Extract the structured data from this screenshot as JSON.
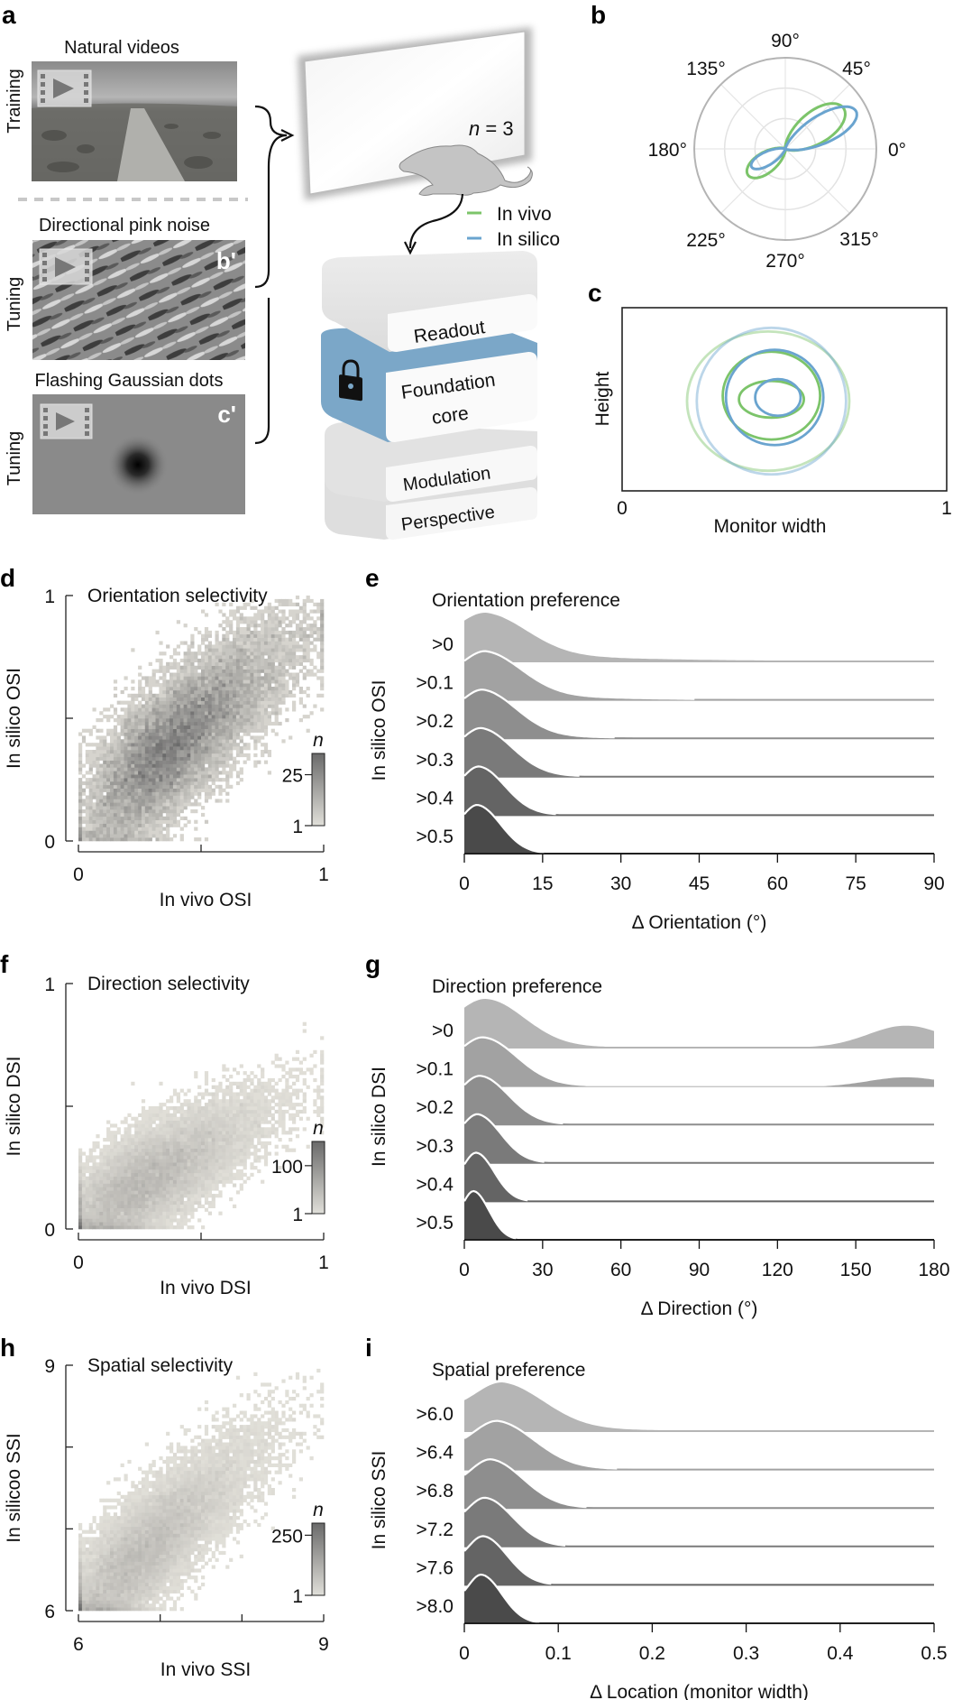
{
  "panel_labels": {
    "a": "a",
    "b": "b",
    "c": "c",
    "d": "d",
    "e": "e",
    "f": "f",
    "g": "g",
    "h": "h",
    "i": "i"
  },
  "panel_a": {
    "stimuli": [
      {
        "title": "Natural videos",
        "side_label": "Training",
        "corner_label": "",
        "icon": "film-play-icon"
      },
      {
        "title": "Directional pink noise",
        "side_label": "Tuning",
        "corner_label": "b'",
        "icon": "film-play-icon"
      },
      {
        "title": "Flashing Gaussian dots",
        "side_label": "Tuning",
        "corner_label": "c'",
        "icon": "film-play-icon"
      }
    ],
    "n_label": "n = 3",
    "legend": [
      {
        "label": "In vivo",
        "color": "#7cc46a"
      },
      {
        "label": "In silico",
        "color": "#6aa4cf"
      }
    ],
    "model_layers": [
      "Readout",
      "Foundation core",
      "Modulation",
      "Perspective"
    ],
    "core_color": "#7ba7c8",
    "lock_icon": "lock-icon"
  },
  "chart_data": [
    {
      "id": "b",
      "type": "polar-line",
      "title": "",
      "angle_ticks": [
        "0°",
        "45°",
        "90°",
        "135°",
        "180°",
        "225°",
        "270°",
        "315°"
      ],
      "series": [
        {
          "name": "In vivo",
          "color": "#7cc46a",
          "preferred_direction_deg": 35,
          "peak": 0.78,
          "opposite_peak": 0.5,
          "width_deg": 22
        },
        {
          "name": "In silico",
          "color": "#6aa4cf",
          "preferred_direction_deg": 28,
          "peak": 0.88,
          "opposite_peak": 0.42,
          "width_deg": 17
        }
      ]
    },
    {
      "id": "c",
      "type": "contour",
      "title": "",
      "xlabel": "Monitor width",
      "ylabel": "Height",
      "xticks": [
        "0",
        "1"
      ],
      "xlim": [
        0,
        1
      ],
      "series": [
        {
          "name": "In vivo",
          "color": "#7cc46a",
          "contours": [
            {
              "cx": 0.46,
              "cy": 0.5,
              "rx": 0.1,
              "ry": 0.1,
              "opacity": 1
            },
            {
              "cx": 0.46,
              "cy": 0.48,
              "rx": 0.15,
              "ry": 0.24,
              "opacity": 1
            },
            {
              "cx": 0.45,
              "cy": 0.51,
              "rx": 0.25,
              "ry": 0.38,
              "opacity": 0.45
            }
          ]
        },
        {
          "name": "In silico",
          "color": "#6aa4cf",
          "contours": [
            {
              "cx": 0.48,
              "cy": 0.49,
              "rx": 0.07,
              "ry": 0.1,
              "opacity": 1
            },
            {
              "cx": 0.47,
              "cy": 0.49,
              "rx": 0.15,
              "ry": 0.26,
              "opacity": 1
            },
            {
              "cx": 0.46,
              "cy": 0.51,
              "rx": 0.23,
              "ry": 0.4,
              "opacity": 0.45
            }
          ]
        }
      ]
    },
    {
      "id": "d",
      "type": "heatmap",
      "title": "Orientation selectivity",
      "xlabel": "In vivo OSI",
      "ylabel": "In silico OSI",
      "xlim": [
        0,
        1
      ],
      "ylim": [
        0,
        1
      ],
      "xticks": [
        "0",
        "",
        "1"
      ],
      "yticks": [
        "0",
        "",
        "1"
      ],
      "colorbar": {
        "label": "n",
        "ticks": [
          "1",
          "25"
        ],
        "max": 35
      },
      "density": {
        "center": [
          0.2,
          0.25
        ],
        "spread": [
          0.35,
          0.3
        ],
        "slope": 0.8
      }
    },
    {
      "id": "e",
      "type": "area",
      "title": "Orientation preference",
      "xlabel": "Δ Orientation (°)",
      "ylabel": "In silico OSI",
      "xlim": [
        0,
        90
      ],
      "xticks": [
        "0",
        "15",
        "30",
        "45",
        "60",
        "75",
        "90"
      ],
      "series": [
        {
          "name": ">0",
          "peak_x": 4,
          "width": 8,
          "tail": 0.22,
          "tail_decay": 22,
          "far_bump": 0
        },
        {
          "name": ">0.1",
          "peak_x": 4,
          "width": 7,
          "tail": 0.2,
          "tail_decay": 17,
          "far_bump": 0
        },
        {
          "name": ">0.2",
          "peak_x": 3.5,
          "width": 6.5,
          "tail": 0.15,
          "tail_decay": 12,
          "far_bump": 0
        },
        {
          "name": ">0.3",
          "peak_x": 3.2,
          "width": 6,
          "tail": 0.1,
          "tail_decay": 9,
          "far_bump": 0
        },
        {
          "name": ">0.4",
          "peak_x": 2.8,
          "width": 5,
          "tail": 0.08,
          "tail_decay": 7,
          "far_bump": 0
        },
        {
          "name": ">0.5",
          "peak_x": 2.5,
          "width": 4.5,
          "tail": 0.06,
          "tail_decay": 5,
          "far_bump": 0
        }
      ]
    },
    {
      "id": "f",
      "type": "heatmap",
      "title": "Direction selectivity",
      "xlabel": "In vivo DSI",
      "ylabel": "In silico DSI",
      "xlim": [
        0,
        1
      ],
      "ylim": [
        0,
        1
      ],
      "xticks": [
        "0",
        "",
        "1"
      ],
      "yticks": [
        "0",
        "",
        "1"
      ],
      "colorbar": {
        "label": "n",
        "ticks": [
          "1",
          "100"
        ],
        "max": 150
      },
      "density": {
        "center": [
          0.1,
          0.1
        ],
        "spread": [
          0.32,
          0.22
        ],
        "slope": 0.55
      }
    },
    {
      "id": "g",
      "type": "area",
      "title": "Direction preference",
      "xlabel": "Δ Direction (°)",
      "ylabel": "In silico DSI",
      "xlim": [
        0,
        180
      ],
      "xticks": [
        "0",
        "30",
        "60",
        "90",
        "120",
        "150",
        "180"
      ],
      "series": [
        {
          "name": ">0",
          "peak_x": 8,
          "width": 15,
          "tail": 0.05,
          "tail_decay": 30,
          "far_bump": 0.45
        },
        {
          "name": ">0.1",
          "peak_x": 7,
          "width": 13,
          "tail": 0.05,
          "tail_decay": 25,
          "far_bump": 0.2
        },
        {
          "name": ">0.2",
          "peak_x": 6,
          "width": 11,
          "tail": 0.06,
          "tail_decay": 15,
          "far_bump": 0
        },
        {
          "name": ">0.3",
          "peak_x": 5,
          "width": 9,
          "tail": 0.05,
          "tail_decay": 12,
          "far_bump": 0
        },
        {
          "name": ">0.4",
          "peak_x": 4.5,
          "width": 7,
          "tail": 0.03,
          "tail_decay": 8,
          "far_bump": 0
        },
        {
          "name": ">0.5",
          "peak_x": 3.5,
          "width": 6,
          "tail": 0.02,
          "tail_decay": 6,
          "far_bump": 0
        }
      ]
    },
    {
      "id": "h",
      "type": "heatmap",
      "title": "Spatial selectivity",
      "xlabel": "In vivo SSI",
      "ylabel": "In silicoo SSI",
      "xlim": [
        6,
        9
      ],
      "ylim": [
        6,
        9
      ],
      "xticks": [
        "6",
        "",
        "",
        "9"
      ],
      "yticks": [
        "6",
        "",
        "",
        "9"
      ],
      "colorbar": {
        "label": "n",
        "ticks": [
          "1",
          "250"
        ],
        "max": 300
      },
      "density": {
        "center": [
          6.3,
          6.3
        ],
        "spread": [
          0.9,
          0.75
        ],
        "slope": 0.85
      }
    },
    {
      "id": "i",
      "type": "area",
      "title": "Spatial preference",
      "xlabel": "Δ Location (monitor width)",
      "ylabel": "In silico SSI",
      "xlim": [
        0,
        0.5
      ],
      "xticks": [
        "0",
        "0.1",
        "0.2",
        "0.3",
        "0.4",
        "0.5"
      ],
      "series": [
        {
          "name": ">6.0",
          "peak_x": 0.04,
          "width": 0.045,
          "tail": 0.15,
          "tail_decay": 0.08,
          "far_bump": 0
        },
        {
          "name": ">6.4",
          "peak_x": 0.035,
          "width": 0.04,
          "tail": 0.12,
          "tail_decay": 0.06,
          "far_bump": 0
        },
        {
          "name": ">6.8",
          "peak_x": 0.028,
          "width": 0.035,
          "tail": 0.08,
          "tail_decay": 0.04,
          "far_bump": 0
        },
        {
          "name": ">7.2",
          "peak_x": 0.022,
          "width": 0.03,
          "tail": 0.05,
          "tail_decay": 0.03,
          "far_bump": 0
        },
        {
          "name": ">7.6",
          "peak_x": 0.02,
          "width": 0.026,
          "tail": 0.04,
          "tail_decay": 0.025,
          "far_bump": 0
        },
        {
          "name": ">8.0",
          "peak_x": 0.018,
          "width": 0.022,
          "tail": 0.03,
          "tail_decay": 0.02,
          "far_bump": 0
        }
      ]
    }
  ],
  "ridge_fill_colors": [
    "#b5b5b5",
    "#a2a2a2",
    "#8e8e8e",
    "#7a7a7a",
    "#646464",
    "#4a4a4a"
  ],
  "heatmap_colors": {
    "low": "#e6e4dd",
    "high": "#6a6a6a"
  }
}
